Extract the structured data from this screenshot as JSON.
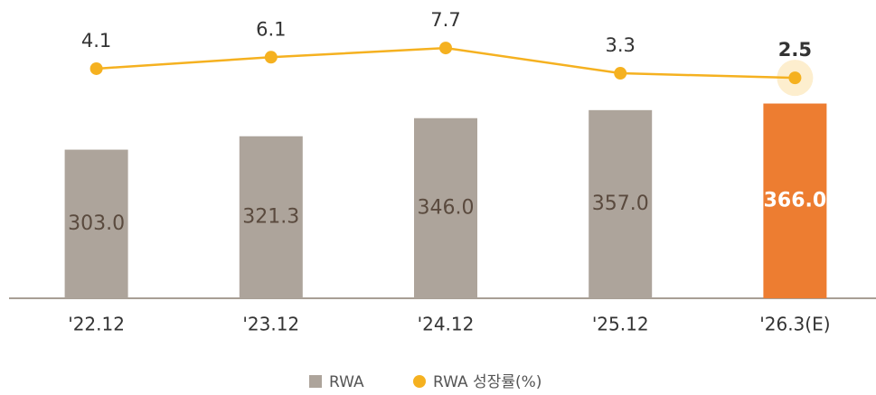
{
  "chart_data": {
    "type": "bar_line",
    "categories": [
      "'22.12",
      "'23.12",
      "'24.12",
      "'25.12",
      "'26.3(E)"
    ],
    "series": [
      {
        "name": "RWA",
        "type": "bar",
        "color": "#ada49b",
        "colors": [
          "#ada49b",
          "#ada49b",
          "#ada49b",
          "#ada49b",
          "#ed7d31"
        ],
        "values": [
          303,
          321.3,
          346,
          357,
          366
        ],
        "value_labels": [
          "303.0",
          "321.3",
          "346.0",
          "357.0",
          "366.0"
        ]
      },
      {
        "name": "RWA 성장률(%)",
        "type": "line",
        "axis": "y2",
        "color": "#f5b120",
        "values": [
          4.1,
          6.1,
          7.7,
          3.3,
          2.5
        ]
      }
    ],
    "highlight": 4,
    "ylim": [
      100,
      400
    ],
    "y2lim": [
      0,
      10
    ],
    "legend": "bottom"
  }
}
